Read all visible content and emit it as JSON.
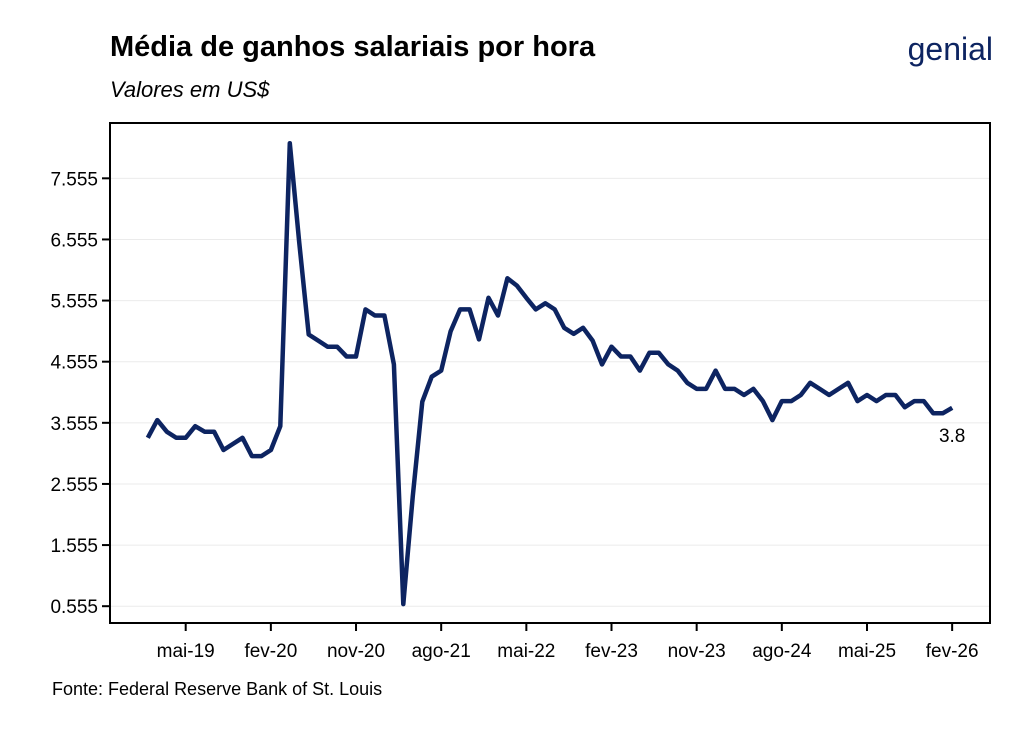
{
  "logo": "genial",
  "chart_data": {
    "type": "line",
    "title": "Média de ganhos salariais por hora",
    "subtitle": "Valores em US$",
    "source": "Fonte: Federal Reserve Bank of St. Louis",
    "x": [
      "2019-01",
      "2019-02",
      "2019-03",
      "2019-04",
      "2019-05",
      "2019-06",
      "2019-07",
      "2019-08",
      "2019-09",
      "2019-10",
      "2019-11",
      "2019-12",
      "2020-01",
      "2020-02",
      "2020-03",
      "2020-04",
      "2020-05",
      "2020-06",
      "2020-07",
      "2020-08",
      "2020-09",
      "2020-10",
      "2020-11",
      "2020-12",
      "2021-01",
      "2021-02",
      "2021-03",
      "2021-04",
      "2021-05",
      "2021-06",
      "2021-07",
      "2021-08",
      "2021-09",
      "2021-10",
      "2021-11",
      "2021-12",
      "2022-01",
      "2022-02",
      "2022-03",
      "2022-04",
      "2022-05",
      "2022-06",
      "2022-07",
      "2022-08",
      "2022-09",
      "2022-10",
      "2022-11",
      "2022-12",
      "2023-01",
      "2023-02",
      "2023-03",
      "2023-04",
      "2023-05",
      "2023-06",
      "2023-07",
      "2023-08",
      "2023-09",
      "2023-10",
      "2023-11",
      "2023-12",
      "2024-01",
      "2024-02",
      "2024-03",
      "2024-04",
      "2024-05",
      "2024-06",
      "2024-07",
      "2024-08",
      "2024-09",
      "2024-10",
      "2024-11",
      "2024-12",
      "2025-01",
      "2025-02",
      "2025-03",
      "2025-04",
      "2025-05",
      "2025-06",
      "2025-07",
      "2025-08",
      "2025-09",
      "2025-10",
      "2025-11",
      "2025-12",
      "2026-01",
      "2026-02"
    ],
    "series": [
      {
        "name": "Média de ganhos salariais por hora",
        "color": "#0d2461",
        "values": [
          3.31,
          3.6,
          3.41,
          3.31,
          3.31,
          3.5,
          3.41,
          3.41,
          3.11,
          3.21,
          3.31,
          3.01,
          3.01,
          3.11,
          3.5,
          8.13,
          6.51,
          5.0,
          4.9,
          4.8,
          4.8,
          4.64,
          4.64,
          5.41,
          5.31,
          5.31,
          4.51,
          0.59,
          2.36,
          3.9,
          4.31,
          4.41,
          5.05,
          5.41,
          5.41,
          4.92,
          5.6,
          5.31,
          5.92,
          5.8,
          5.6,
          5.41,
          5.51,
          5.41,
          5.11,
          5.01,
          5.11,
          4.9,
          4.51,
          4.8,
          4.64,
          4.64,
          4.41,
          4.7,
          4.7,
          4.51,
          4.41,
          4.21,
          4.11,
          4.11,
          4.41,
          4.11,
          4.11,
          4.01,
          4.11,
          3.91,
          3.6,
          3.91,
          3.91,
          4.01,
          4.21,
          4.11,
          4.01,
          4.11,
          4.21,
          3.91,
          4.01,
          3.91,
          4.01,
          4.01,
          3.81,
          3.91,
          3.91,
          3.71,
          3.71,
          3.8
        ]
      }
    ],
    "xlim": [
      "2018-09",
      "2026-06"
    ],
    "xticks": [
      {
        "value": "2019-05",
        "label": "mai-19"
      },
      {
        "value": "2020-02",
        "label": "fev-20"
      },
      {
        "value": "2020-11",
        "label": "nov-20"
      },
      {
        "value": "2021-08",
        "label": "ago-21"
      },
      {
        "value": "2022-05",
        "label": "mai-22"
      },
      {
        "value": "2023-02",
        "label": "fev-23"
      },
      {
        "value": "2023-11",
        "label": "nov-23"
      },
      {
        "value": "2024-08",
        "label": "ago-24"
      },
      {
        "value": "2025-05",
        "label": "mai-25"
      },
      {
        "value": "2026-02",
        "label": "fev-26"
      }
    ],
    "ylim": [
      0.28,
      8.46
    ],
    "yticks": [
      0.555,
      1.555,
      2.555,
      3.555,
      4.555,
      5.555,
      6.555,
      7.555
    ],
    "grid": true
  }
}
